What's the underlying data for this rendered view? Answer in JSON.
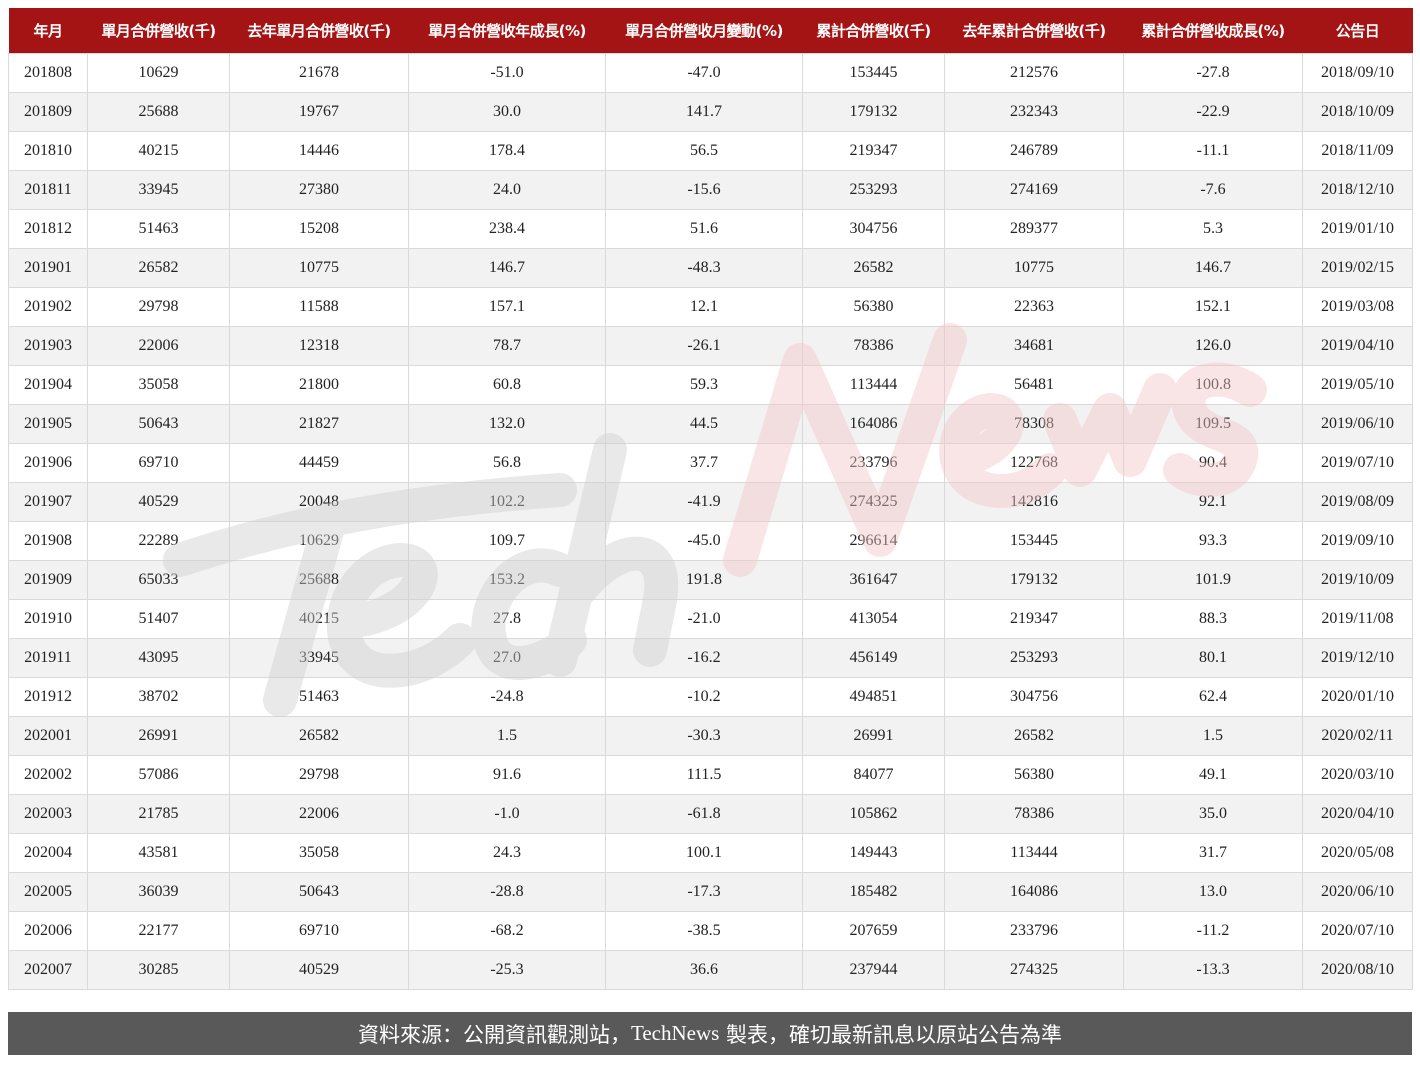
{
  "columns": [
    "年月",
    "單月合併營收(千)",
    "去年單月合併營收(千)",
    "單月合併營收年成長(%)",
    "單月合併營收月變動(%)",
    "累計合併營收(千)",
    "去年累計合併營收(千)",
    "累計合併營收成長(%)",
    "公告日"
  ],
  "rows": [
    [
      "201808",
      "10629",
      "21678",
      "-51.0",
      "-47.0",
      "153445",
      "212576",
      "-27.8",
      "2018/09/10"
    ],
    [
      "201809",
      "25688",
      "19767",
      "30.0",
      "141.7",
      "179132",
      "232343",
      "-22.9",
      "2018/10/09"
    ],
    [
      "201810",
      "40215",
      "14446",
      "178.4",
      "56.5",
      "219347",
      "246789",
      "-11.1",
      "2018/11/09"
    ],
    [
      "201811",
      "33945",
      "27380",
      "24.0",
      "-15.6",
      "253293",
      "274169",
      "-7.6",
      "2018/12/10"
    ],
    [
      "201812",
      "51463",
      "15208",
      "238.4",
      "51.6",
      "304756",
      "289377",
      "5.3",
      "2019/01/10"
    ],
    [
      "201901",
      "26582",
      "10775",
      "146.7",
      "-48.3",
      "26582",
      "10775",
      "146.7",
      "2019/02/15"
    ],
    [
      "201902",
      "29798",
      "11588",
      "157.1",
      "12.1",
      "56380",
      "22363",
      "152.1",
      "2019/03/08"
    ],
    [
      "201903",
      "22006",
      "12318",
      "78.7",
      "-26.1",
      "78386",
      "34681",
      "126.0",
      "2019/04/10"
    ],
    [
      "201904",
      "35058",
      "21800",
      "60.8",
      "59.3",
      "113444",
      "56481",
      "100.8",
      "2019/05/10"
    ],
    [
      "201905",
      "50643",
      "21827",
      "132.0",
      "44.5",
      "164086",
      "78308",
      "109.5",
      "2019/06/10"
    ],
    [
      "201906",
      "69710",
      "44459",
      "56.8",
      "37.7",
      "233796",
      "122768",
      "90.4",
      "2019/07/10"
    ],
    [
      "201907",
      "40529",
      "20048",
      "102.2",
      "-41.9",
      "274325",
      "142816",
      "92.1",
      "2019/08/09"
    ],
    [
      "201908",
      "22289",
      "10629",
      "109.7",
      "-45.0",
      "296614",
      "153445",
      "93.3",
      "2019/09/10"
    ],
    [
      "201909",
      "65033",
      "25688",
      "153.2",
      "191.8",
      "361647",
      "179132",
      "101.9",
      "2019/10/09"
    ],
    [
      "201910",
      "51407",
      "40215",
      "27.8",
      "-21.0",
      "413054",
      "219347",
      "88.3",
      "2019/11/08"
    ],
    [
      "201911",
      "43095",
      "33945",
      "27.0",
      "-16.2",
      "456149",
      "253293",
      "80.1",
      "2019/12/10"
    ],
    [
      "201912",
      "38702",
      "51463",
      "-24.8",
      "-10.2",
      "494851",
      "304756",
      "62.4",
      "2020/01/10"
    ],
    [
      "202001",
      "26991",
      "26582",
      "1.5",
      "-30.3",
      "26991",
      "26582",
      "1.5",
      "2020/02/11"
    ],
    [
      "202002",
      "57086",
      "29798",
      "91.6",
      "111.5",
      "84077",
      "56380",
      "49.1",
      "2020/03/10"
    ],
    [
      "202003",
      "21785",
      "22006",
      "-1.0",
      "-61.8",
      "105862",
      "78386",
      "35.0",
      "2020/04/10"
    ],
    [
      "202004",
      "43581",
      "35058",
      "24.3",
      "100.1",
      "149443",
      "113444",
      "31.7",
      "2020/05/08"
    ],
    [
      "202005",
      "36039",
      "50643",
      "-28.8",
      "-17.3",
      "185482",
      "164086",
      "13.0",
      "2020/06/10"
    ],
    [
      "202006",
      "22177",
      "69710",
      "-68.2",
      "-38.5",
      "207659",
      "233796",
      "-11.2",
      "2020/07/10"
    ],
    [
      "202007",
      "30285",
      "40529",
      "-25.3",
      "36.6",
      "237944",
      "274325",
      "-13.3",
      "2020/08/10"
    ]
  ],
  "footer": {
    "prefix": "資料來源：公開資訊觀測站，",
    "brand": "TechNews",
    "suffix": " 製表，確切最新訊息以原站公告為準"
  },
  "watermark": {
    "part1": "Tech",
    "part2": "News"
  },
  "colors": {
    "header_bg": "#a51415",
    "footer_bg": "#595959",
    "watermark_gray": "#cfcfcf",
    "watermark_red": "#f3c6c8"
  }
}
